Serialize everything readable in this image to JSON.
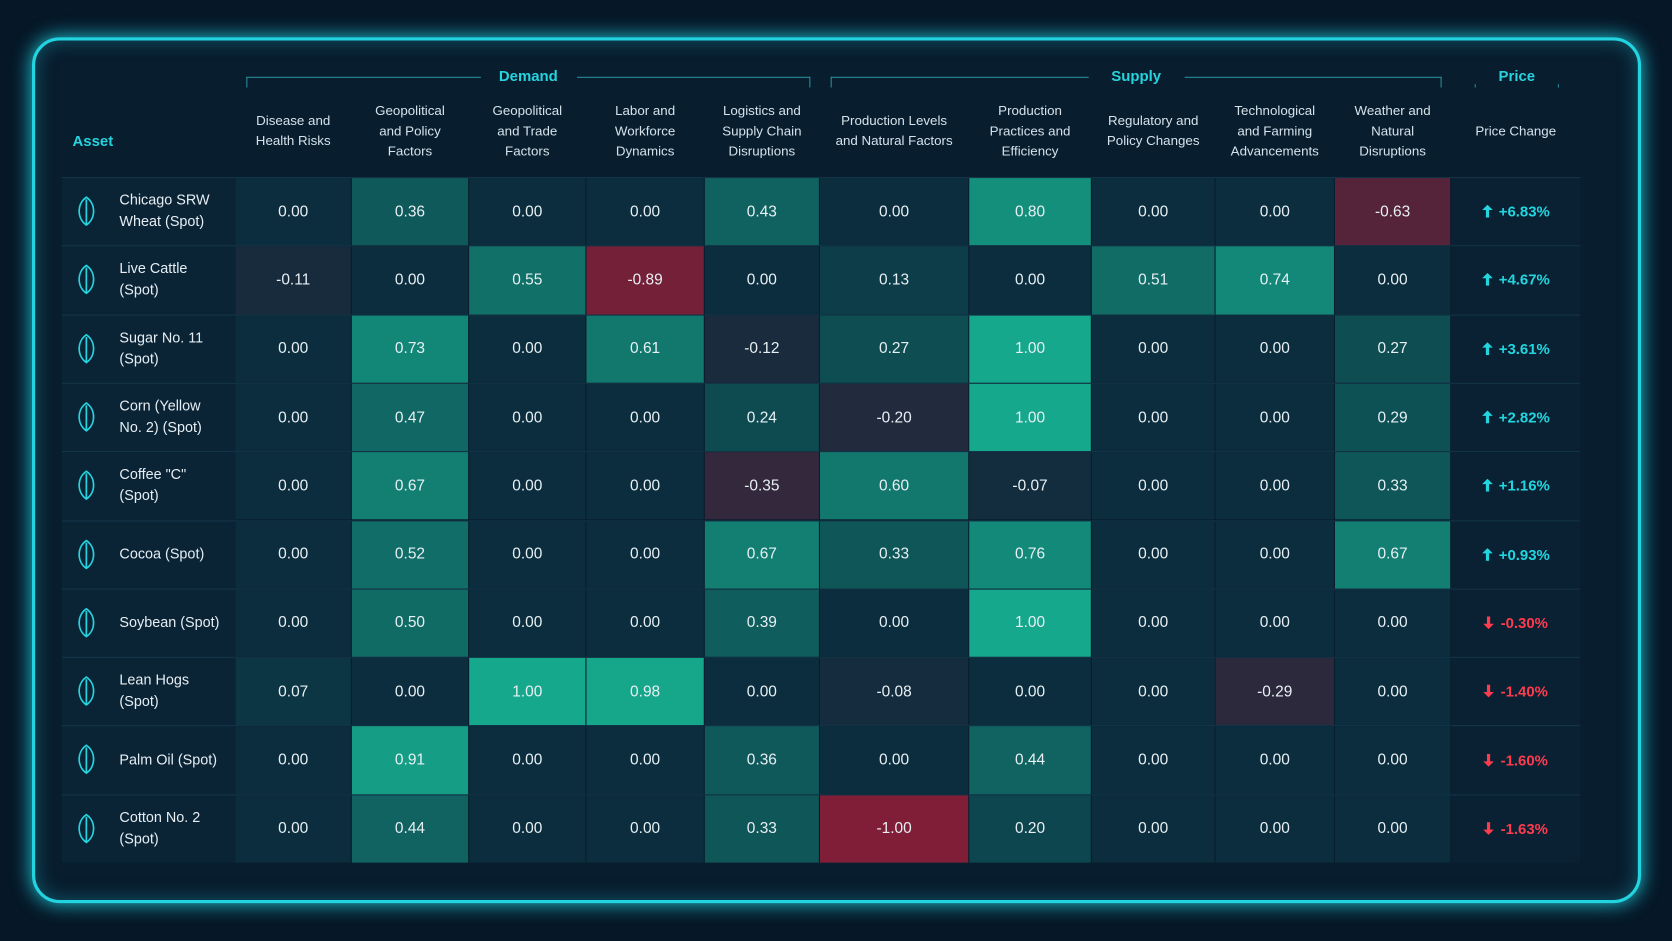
{
  "header": {
    "asset": "Asset",
    "groups": [
      {
        "label": "Demand",
        "from": 0,
        "to": 4
      },
      {
        "label": "Supply",
        "from": 5,
        "to": 9
      },
      {
        "label": "Price",
        "from": 10,
        "to": 10
      }
    ],
    "columns": [
      "Disease and Health Risks",
      "Geopolitical and Policy Factors",
      "Geopolitical and Trade Factors",
      "Labor and Workforce Dynamics",
      "Logistics and Supply Chain Disruptions",
      "Production Levels and Natural Factors",
      "Production Practices and Efficiency",
      "Regulatory and Policy Changes",
      "Technological and Farming Advancements",
      "Weather and Natural Disruptions",
      "Price Change"
    ]
  },
  "rows": [
    {
      "asset": "Chicago SRW Wheat (Spot)",
      "values": [
        "0.00",
        "0.36",
        "0.00",
        "0.00",
        "0.43",
        "0.00",
        "0.80",
        "0.00",
        "0.00",
        "-0.63"
      ],
      "price_change": "+6.83%"
    },
    {
      "asset": "Live Cattle (Spot)",
      "values": [
        "-0.11",
        "0.00",
        "0.55",
        "-0.89",
        "0.00",
        "0.13",
        "0.00",
        "0.51",
        "0.74",
        "0.00"
      ],
      "price_change": "+4.67%"
    },
    {
      "asset": "Sugar No. 11 (Spot)",
      "values": [
        "0.00",
        "0.73",
        "0.00",
        "0.61",
        "-0.12",
        "0.27",
        "1.00",
        "0.00",
        "0.00",
        "0.27"
      ],
      "price_change": "+3.61%"
    },
    {
      "asset": "Corn (Yellow No. 2) (Spot)",
      "values": [
        "0.00",
        "0.47",
        "0.00",
        "0.00",
        "0.24",
        "-0.20",
        "1.00",
        "0.00",
        "0.00",
        "0.29"
      ],
      "price_change": "+2.82%"
    },
    {
      "asset": "Coffee \"C\" (Spot)",
      "values": [
        "0.00",
        "0.67",
        "0.00",
        "0.00",
        "-0.35",
        "0.60",
        "-0.07",
        "0.00",
        "0.00",
        "0.33"
      ],
      "price_change": "+1.16%"
    },
    {
      "asset": "Cocoa (Spot)",
      "values": [
        "0.00",
        "0.52",
        "0.00",
        "0.00",
        "0.67",
        "0.33",
        "0.76",
        "0.00",
        "0.00",
        "0.67"
      ],
      "price_change": "+0.93%"
    },
    {
      "asset": "Soybean (Spot)",
      "values": [
        "0.00",
        "0.50",
        "0.00",
        "0.00",
        "0.39",
        "0.00",
        "1.00",
        "0.00",
        "0.00",
        "0.00"
      ],
      "price_change": "-0.30%"
    },
    {
      "asset": "Lean Hogs (Spot)",
      "values": [
        "0.07",
        "0.00",
        "1.00",
        "0.98",
        "0.00",
        "-0.08",
        "0.00",
        "0.00",
        "-0.29",
        "0.00"
      ],
      "price_change": "-1.40%"
    },
    {
      "asset": "Palm Oil (Spot)",
      "values": [
        "0.00",
        "0.91",
        "0.00",
        "0.00",
        "0.36",
        "0.00",
        "0.44",
        "0.00",
        "0.00",
        "0.00"
      ],
      "price_change": "-1.60%"
    },
    {
      "asset": "Cotton No. 2 (Spot)",
      "values": [
        "0.00",
        "0.44",
        "0.00",
        "0.00",
        "0.33",
        "-1.00",
        "0.20",
        "0.00",
        "0.00",
        "0.00"
      ],
      "price_change": "-1.63%"
    }
  ]
}
